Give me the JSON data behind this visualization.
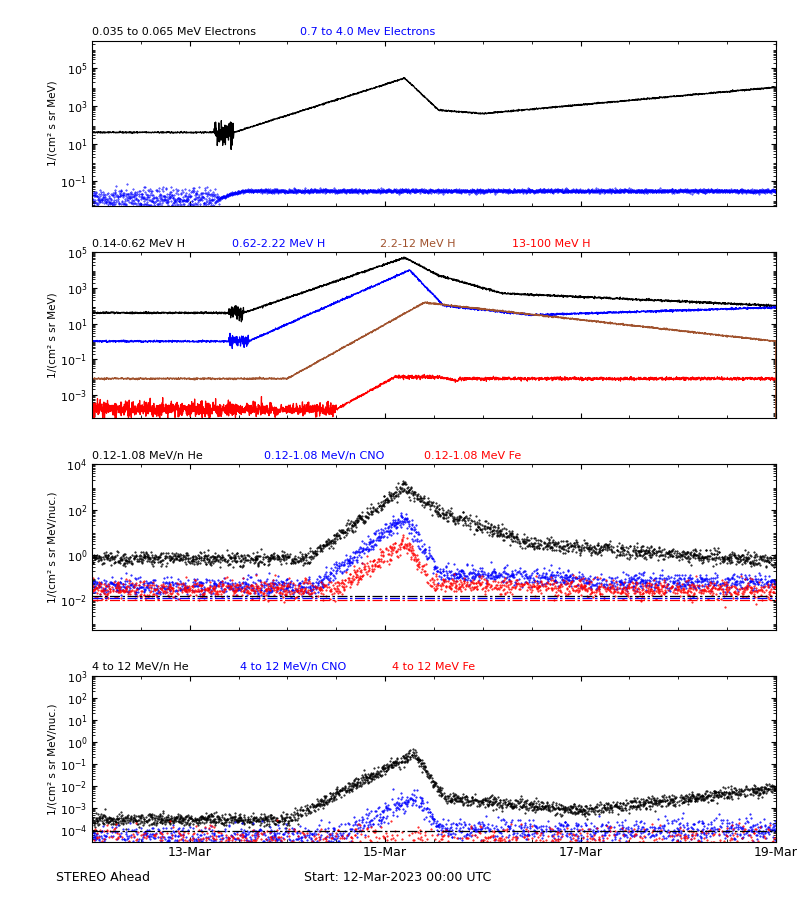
{
  "title_panel1_black": "0.035 to 0.065 MeV Electrons",
  "title_panel1_blue": "0.7 to 4.0 Mev Electrons",
  "title_panel2_black": "0.14-0.62 MeV H",
  "title_panel2_blue": "0.62-2.22 MeV H",
  "title_panel2_brown": "2.2-12 MeV H",
  "title_panel2_red": "13-100 MeV H",
  "title_panel3_black": "0.12-1.08 MeV/n He",
  "title_panel3_blue": "0.12-1.08 MeV/n CNO",
  "title_panel3_red": "0.12-1.08 MeV Fe",
  "title_panel4_black": "4 to 12 MeV/n He",
  "title_panel4_blue": "4 to 12 MeV/n CNO",
  "title_panel4_red": "4 to 12 MeV Fe",
  "ylabel_panel12": "1/(cm² s sr MeV)",
  "ylabel_panel34": "1/(cm² s sr MeV/nuc.)",
  "xlabel": "STEREO Ahead",
  "start_label": "Start: 12-Mar-2023 00:00 UTC",
  "xtick_labels": [
    "13-Mar",
    "15-Mar",
    "17-Mar",
    "19-Mar"
  ],
  "panel1_ylim": [
    0.005,
    3000000.0
  ],
  "panel2_ylim": [
    5e-05,
    100000.0
  ],
  "panel3_ylim": [
    0.0005,
    10000.0
  ],
  "panel4_ylim": [
    3e-05,
    1000.0
  ],
  "colors": {
    "black": "#000000",
    "blue": "#0000FF",
    "red": "#FF0000",
    "brown": "#A0522D"
  },
  "background": "#FFFFFF",
  "seed": 42
}
